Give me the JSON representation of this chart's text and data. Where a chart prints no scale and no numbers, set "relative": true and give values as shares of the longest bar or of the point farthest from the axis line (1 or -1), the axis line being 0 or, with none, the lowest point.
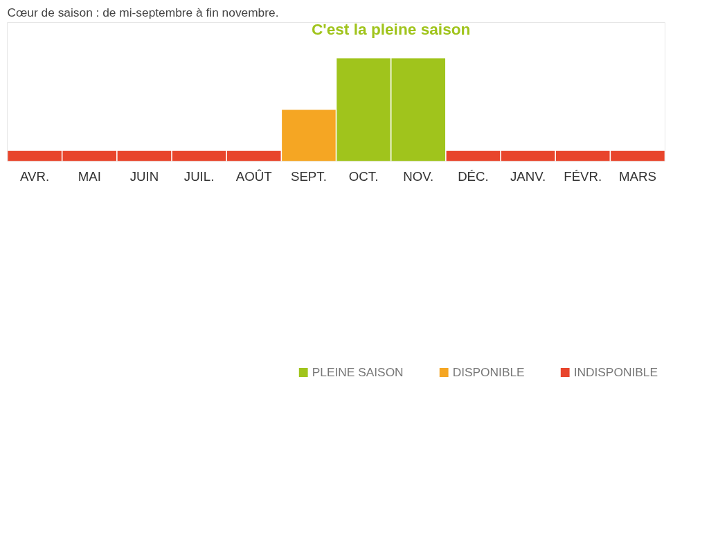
{
  "chart_data": {
    "type": "bar",
    "title": "Cœur de saison : de mi-septembre à fin novembre.",
    "relative": true,
    "categories": [
      "AVR.",
      "MAI",
      "JUIN",
      "JUIL.",
      "AOÛT",
      "SEPT.",
      "OCT.",
      "NOV.",
      "DÉC.",
      "JANV.",
      "FÉVR.",
      "MARS"
    ],
    "series": [
      {
        "name": "PLEINE SAISON",
        "color": "#a0c41c",
        "values": [
          null,
          null,
          null,
          null,
          null,
          null,
          1,
          1,
          null,
          null,
          null,
          null
        ]
      },
      {
        "name": "DISPONIBLE",
        "color": "#f5a623",
        "values": [
          null,
          null,
          null,
          null,
          null,
          0.5,
          null,
          null,
          null,
          null,
          null,
          null
        ]
      },
      {
        "name": "INDISPONIBLE",
        "color": "#e8452c",
        "values": [
          0.1,
          0.1,
          0.1,
          0.1,
          0.1,
          null,
          null,
          null,
          0.1,
          0.1,
          0.1,
          0.1
        ]
      }
    ],
    "annotations": [
      "C'est la pleine saison"
    ],
    "legend": "bottom"
  }
}
